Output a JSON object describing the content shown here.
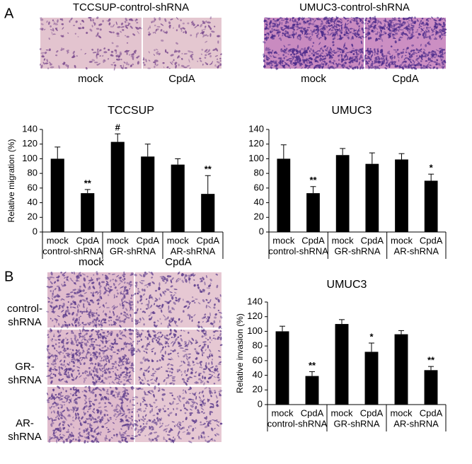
{
  "panel_a": {
    "label": "A",
    "images": [
      {
        "title": "TCCSUP-control-shRNA",
        "captions": [
          "mock",
          "CpdA"
        ]
      },
      {
        "title": "UMUC3-control-shRNA",
        "captions": [
          "mock",
          "CpdA"
        ]
      }
    ]
  },
  "panel_b": {
    "label": "B",
    "column_captions": [
      "mock",
      "CpdA"
    ],
    "rows": [
      {
        "label_lines": [
          "control-",
          "shRNA"
        ]
      },
      {
        "label_lines": [
          "GR-",
          "shRNA"
        ]
      },
      {
        "label_lines": [
          "AR-",
          "shRNA"
        ]
      }
    ]
  },
  "chart_data": [
    {
      "type": "bar",
      "title": "TCCSUP",
      "ylabel": "Relative migration (%)",
      "categories": [
        "mock",
        "CpdA",
        "mock",
        "CpdA",
        "mock",
        "CpdA"
      ],
      "groups": [
        "control-shRNA",
        "GR-shRNA",
        "AR-shRNA"
      ],
      "values": [
        100,
        53,
        123,
        103,
        92,
        52
      ],
      "errors": [
        16,
        5,
        11,
        17,
        8,
        25
      ],
      "bar_labels": [
        null,
        "**",
        "#",
        null,
        null,
        "**"
      ],
      "color": "#000000",
      "ylim": [
        0,
        140
      ],
      "yticks": [
        0,
        20,
        40,
        60,
        80,
        100,
        120,
        140
      ]
    },
    {
      "type": "bar",
      "title": "UMUC3",
      "categories": [
        "mock",
        "CpdA",
        "mock",
        "CpdA",
        "mock",
        "CpdA"
      ],
      "groups": [
        "control-shRNA",
        "GR-shRNA",
        "AR-shRNA"
      ],
      "values": [
        100,
        53,
        105,
        93,
        99,
        70
      ],
      "errors": [
        19,
        9,
        9,
        15,
        8,
        9
      ],
      "bar_labels": [
        null,
        "**",
        null,
        null,
        null,
        "*"
      ],
      "color": "#000000",
      "ylim": [
        0,
        140
      ],
      "yticks": [
        0,
        20,
        40,
        60,
        80,
        100,
        120,
        140
      ]
    },
    {
      "type": "bar",
      "title": "UMUC3",
      "ylabel": "Relative invasion (%)",
      "categories": [
        "mock",
        "CpdA",
        "mock",
        "CpdA",
        "mock",
        "CpdA"
      ],
      "groups": [
        "control-shRNA",
        "GR-shRNA",
        "AR-shRNA"
      ],
      "values": [
        100,
        39,
        110,
        72,
        96,
        47
      ],
      "errors": [
        7,
        6,
        6,
        12,
        5,
        5
      ],
      "bar_labels": [
        null,
        "**",
        null,
        "*",
        null,
        "**"
      ],
      "color": "#000000",
      "ylim": [
        0,
        140
      ],
      "yticks": [
        0,
        20,
        40,
        60,
        80,
        100,
        120,
        140
      ]
    }
  ]
}
